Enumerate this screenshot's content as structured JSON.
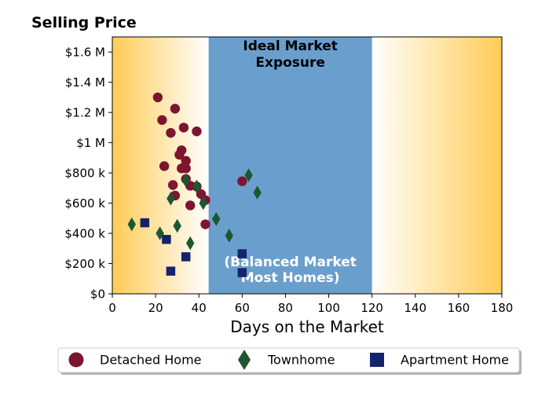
{
  "chart_data": {
    "type": "scatter",
    "title": "Selling Price",
    "xlabel": "Days on the Market",
    "ylabel": "",
    "xlim": [
      0,
      180
    ],
    "ylim": [
      0,
      1700000
    ],
    "xticks": [
      0,
      20,
      40,
      60,
      80,
      100,
      120,
      140,
      160,
      180
    ],
    "xtick_labels": [
      "0",
      "20",
      "40",
      "60",
      "80",
      "100",
      "120",
      "140",
      "160",
      "180"
    ],
    "yticks": [
      0,
      200000,
      400000,
      600000,
      800000,
      1000000,
      1200000,
      1400000,
      1600000
    ],
    "ytick_labels": [
      "$0",
      "$200 k",
      "$400 k",
      "$600 k",
      "$800 k",
      "$1 M",
      "$1.2 M",
      "$1.4 M",
      "$1.6 M"
    ],
    "grid": false,
    "legend_placement": "bottom-center",
    "bands": [
      {
        "x_from": 44.5,
        "x_to": 120,
        "color": "#6a9fcd",
        "label_top": "Ideal Market\nExposure",
        "label_bottom": "(Balanced Market\nMost Homes)"
      }
    ],
    "outer_gradient_color": "#ffcc55",
    "series": [
      {
        "name": "Detached Home",
        "marker": "circle",
        "color": "#7b1630",
        "points": [
          [
            21,
            1300000
          ],
          [
            29,
            1225000
          ],
          [
            23,
            1150000
          ],
          [
            33,
            1100000
          ],
          [
            39,
            1075000
          ],
          [
            27,
            1065000
          ],
          [
            32,
            950000
          ],
          [
            31,
            920000
          ],
          [
            34,
            880000
          ],
          [
            24,
            845000
          ],
          [
            32,
            830000
          ],
          [
            34,
            830000
          ],
          [
            34,
            760000
          ],
          [
            60,
            745000
          ],
          [
            28,
            720000
          ],
          [
            36,
            715000
          ],
          [
            39,
            710000
          ],
          [
            41,
            660000
          ],
          [
            29,
            650000
          ],
          [
            43,
            620000
          ],
          [
            36,
            585000
          ],
          [
            43,
            460000
          ]
        ]
      },
      {
        "name": "Townhome",
        "marker": "diamond",
        "color": "#1e5631",
        "points": [
          [
            63,
            785000
          ],
          [
            34,
            750000
          ],
          [
            39,
            710000
          ],
          [
            67,
            670000
          ],
          [
            27,
            630000
          ],
          [
            42,
            600000
          ],
          [
            48,
            495000
          ],
          [
            9,
            460000
          ],
          [
            30,
            450000
          ],
          [
            22,
            400000
          ],
          [
            54,
            385000
          ],
          [
            36,
            335000
          ]
        ]
      },
      {
        "name": "Apartment Home",
        "marker": "square",
        "color": "#15236b",
        "points": [
          [
            15,
            470000
          ],
          [
            25,
            360000
          ],
          [
            60,
            265000
          ],
          [
            34,
            245000
          ],
          [
            27,
            150000
          ],
          [
            60,
            140000
          ]
        ]
      }
    ]
  }
}
